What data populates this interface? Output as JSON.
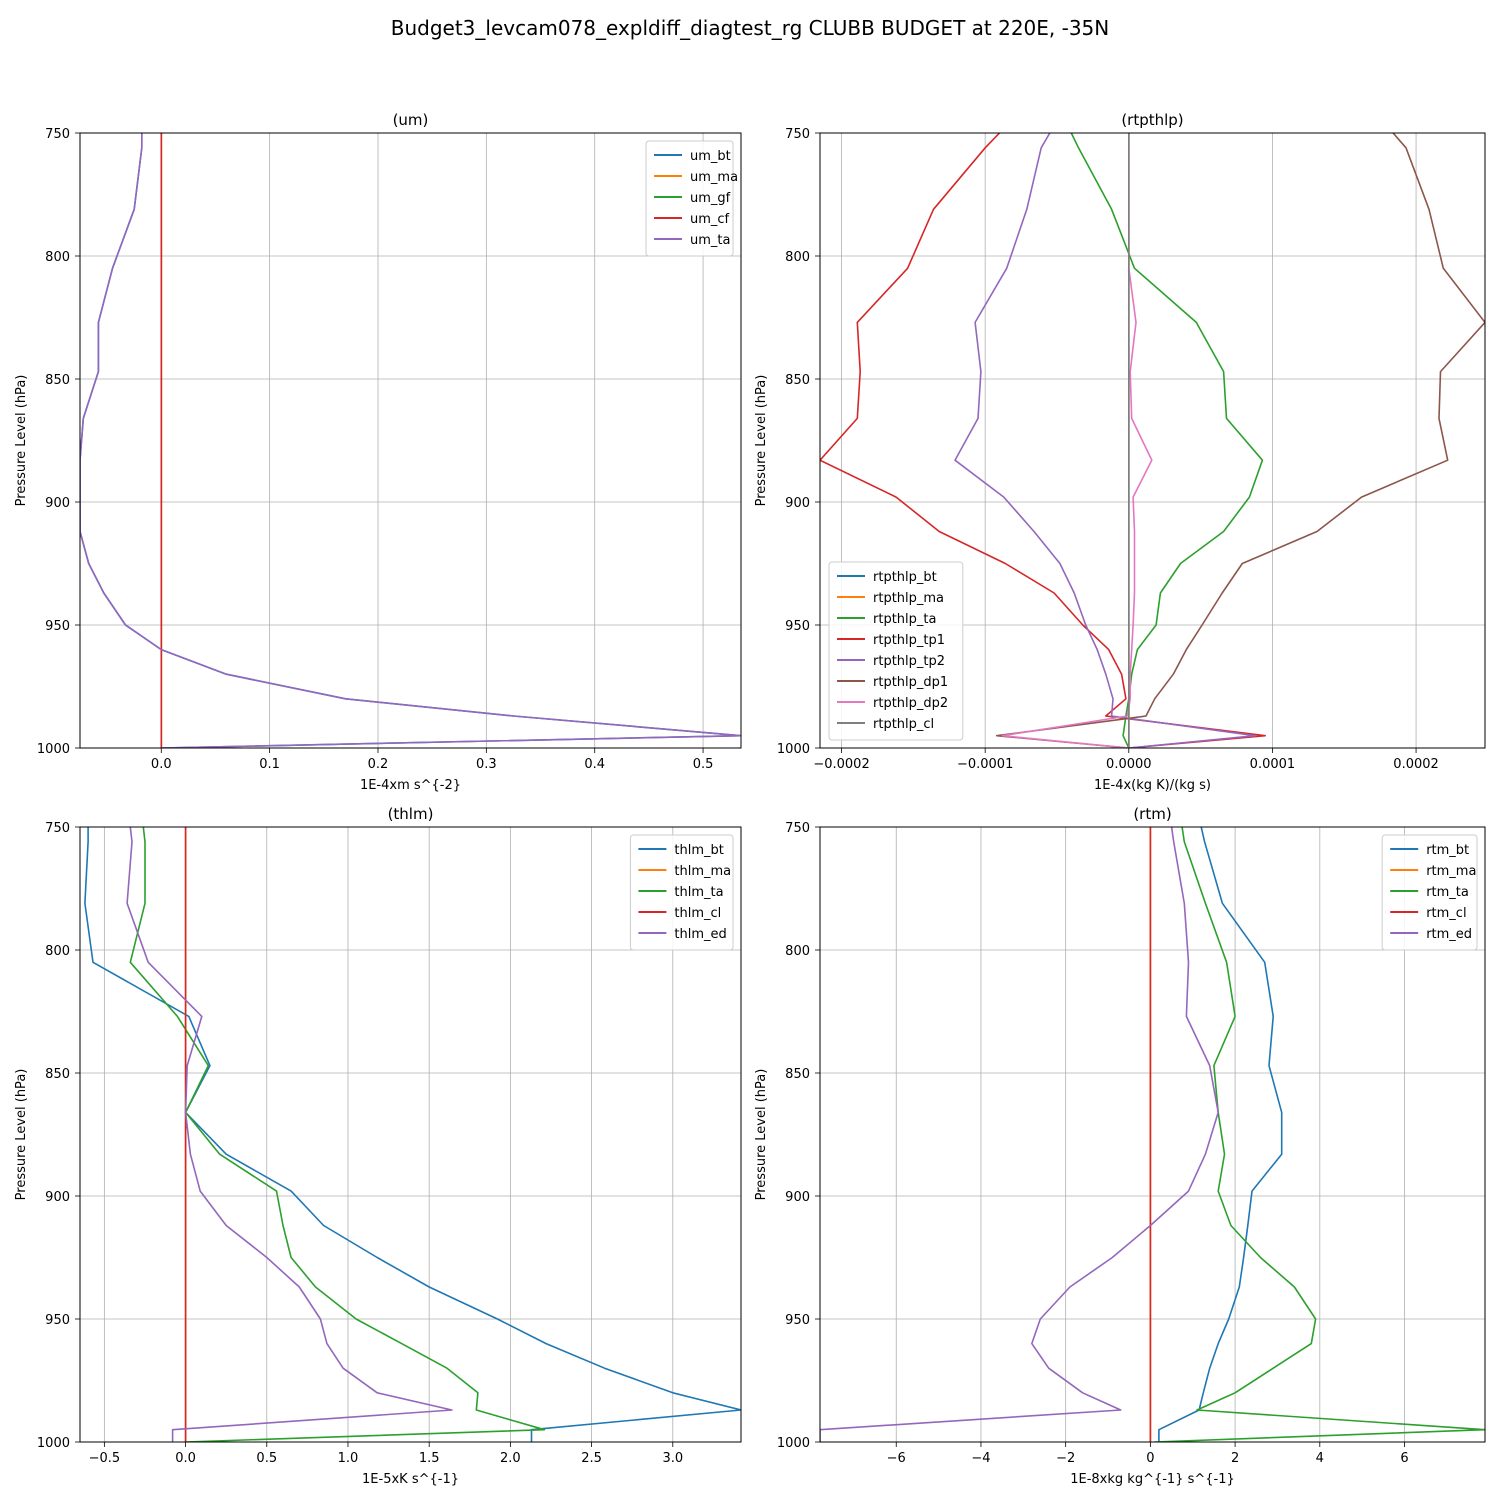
{
  "title": "Budget3_levcam078_expldiff_diagtest_rg CLUBB BUDGET at 220E, -35N",
  "colors": {
    "blue": "#1f77b4",
    "orange": "#ff7f0e",
    "green": "#2ca02c",
    "red": "#d62728",
    "purple": "#9467bd",
    "brown": "#8c564b",
    "pink": "#e377c2",
    "gray": "#7f7f7f"
  },
  "chart_data": [
    {
      "type": "line",
      "title": "(um)",
      "xlabel": "1E-4xm s^{-2}",
      "ylabel": "Pressure Level (hPa)",
      "xlim": [
        -0.075,
        0.535
      ],
      "ylim": [
        1000,
        750
      ],
      "xticks": [
        "0.0",
        "0.1",
        "0.2",
        "0.3",
        "0.4",
        "0.5"
      ],
      "xtick_values": [
        0.0,
        0.1,
        0.2,
        0.3,
        0.4,
        0.5
      ],
      "yticks": [
        "750",
        "800",
        "850",
        "900",
        "950",
        "1000"
      ],
      "ytick_values": [
        750,
        800,
        850,
        900,
        950,
        1000
      ],
      "grid": true,
      "legend_position": "top-right",
      "levels": [
        750,
        756,
        781,
        805,
        827,
        847,
        866,
        883,
        898,
        912,
        925,
        937,
        950,
        960,
        970,
        980,
        987,
        995,
        1000
      ],
      "series": [
        {
          "name": "um_bt",
          "color": "blue",
          "x": [
            -0.018,
            -0.018,
            -0.025,
            -0.045,
            -0.058,
            -0.058,
            -0.072,
            -0.075,
            -0.075,
            -0.075,
            -0.067,
            -0.053,
            -0.033,
            0.0,
            0.06,
            0.17,
            0.325,
            0.535,
            0.0
          ]
        },
        {
          "name": "um_ma",
          "color": "orange",
          "x": [
            0,
            0,
            0,
            0,
            0,
            0,
            0,
            0,
            0,
            0,
            0,
            0,
            0,
            0,
            0,
            0,
            0,
            0,
            0
          ]
        },
        {
          "name": "um_gf",
          "color": "green",
          "x": [
            0,
            0,
            0,
            0,
            0,
            0,
            0,
            0,
            0,
            0,
            0,
            0,
            0,
            0,
            0,
            0,
            0,
            0,
            0
          ]
        },
        {
          "name": "um_cf",
          "color": "red",
          "x": [
            0,
            0,
            0,
            0,
            0,
            0,
            0,
            0,
            0,
            0,
            0,
            0,
            0,
            0,
            0,
            0,
            0,
            0,
            0
          ]
        },
        {
          "name": "um_ta",
          "color": "purple",
          "x": [
            -0.018,
            -0.018,
            -0.025,
            -0.045,
            -0.058,
            -0.058,
            -0.072,
            -0.075,
            -0.075,
            -0.075,
            -0.067,
            -0.053,
            -0.033,
            0.0,
            0.06,
            0.17,
            0.325,
            0.535,
            0.0
          ]
        }
      ]
    },
    {
      "type": "line",
      "title": "(rtpthlp)",
      "xlabel": "1E-4x(kg K)/(kg s)",
      "ylabel": "Pressure Level (hPa)",
      "xlim": [
        -0.000215,
        0.000248
      ],
      "ylim": [
        1000,
        750
      ],
      "xticks": [
        "−0.0002",
        "−0.0001",
        "0.0000",
        "0.0001",
        "0.0002"
      ],
      "xtick_values": [
        -0.0002,
        -0.0001,
        0.0,
        0.0001,
        0.0002
      ],
      "yticks": [
        "750",
        "800",
        "850",
        "900",
        "950",
        "1000"
      ],
      "ytick_values": [
        750,
        800,
        850,
        900,
        950,
        1000
      ],
      "grid": true,
      "legend_position": "bottom-left",
      "levels": [
        750,
        756,
        781,
        805,
        827,
        847,
        866,
        883,
        898,
        912,
        925,
        937,
        950,
        960,
        970,
        980,
        987,
        995,
        1000
      ],
      "series": [
        {
          "name": "rtpthlp_bt",
          "color": "blue",
          "x": [
            0.0,
            0.0,
            0.0,
            0.0,
            0.0,
            0.0,
            0.0,
            0.0,
            0.0,
            0.0,
            0.0,
            0.0,
            0.0,
            0.0,
            0.0,
            0.0,
            0.0,
            0.0,
            0.0
          ]
        },
        {
          "name": "rtpthlp_ma",
          "color": "orange",
          "x": [
            0.0,
            0.0,
            0.0,
            0.0,
            0.0,
            0.0,
            0.0,
            0.0,
            0.0,
            0.0,
            0.0,
            0.0,
            0.0,
            0.0,
            0.0,
            0.0,
            0.0,
            0.0,
            0.0
          ]
        },
        {
          "name": "rtpthlp_ta",
          "color": "green",
          "x": [
            -4e-05,
            -3.5e-05,
            -1.2e-05,
            4e-06,
            4.7e-05,
            6.6e-05,
            6.8e-05,
            9.3e-05,
            8.4e-05,
            6.6e-05,
            3.6e-05,
            2.2e-05,
            1.9e-05,
            6e-06,
            2e-06,
            0.0,
            -2e-06,
            -4e-06,
            0.0
          ]
        },
        {
          "name": "rtpthlp_tp1",
          "color": "red",
          "x": [
            -9e-05,
            -0.0001,
            -0.000136,
            -0.000154,
            -0.000189,
            -0.000187,
            -0.000189,
            -0.000215,
            -0.000162,
            -0.000132,
            -8.6e-05,
            -5.2e-05,
            -3.2e-05,
            -1.4e-05,
            -5e-06,
            -2e-06,
            -1.6e-05,
            9.5e-05,
            0.0
          ]
        },
        {
          "name": "rtpthlp_tp2",
          "color": "purple",
          "x": [
            -5.5e-05,
            -6.1e-05,
            -7.1e-05,
            -8.5e-05,
            -0.000107,
            -0.000103,
            -0.000105,
            -0.000121,
            -8.7e-05,
            -6.6e-05,
            -4.8e-05,
            -3.8e-05,
            -3e-05,
            -2.2e-05,
            -1.6e-05,
            -1.1e-05,
            -1.2e-05,
            8.8e-05,
            0.0
          ]
        },
        {
          "name": "rtpthlp_dp1",
          "color": "brown",
          "x": [
            0.000184,
            0.000193,
            0.000209,
            0.000219,
            0.000248,
            0.000217,
            0.000216,
            0.000222,
            0.000162,
            0.000131,
            7.9e-05,
            6.5e-05,
            5.1e-05,
            4e-05,
            3.1e-05,
            1.8e-05,
            1.2e-05,
            -9.2e-05,
            0.0
          ]
        },
        {
          "name": "rtpthlp_dp2",
          "color": "pink",
          "x": [
            0.0,
            0.0,
            0.0,
            0.0,
            5e-06,
            1e-06,
            2e-06,
            1.6e-05,
            3e-06,
            4e-06,
            4e-06,
            4e-06,
            3e-06,
            2e-06,
            1e-06,
            1e-06,
            -1e-06,
            -8.8e-05,
            0.0
          ]
        },
        {
          "name": "rtpthlp_cl",
          "color": "gray",
          "x": [
            0.0,
            0.0,
            0.0,
            0.0,
            0.0,
            0.0,
            0.0,
            0.0,
            0.0,
            0.0,
            0.0,
            0.0,
            0.0,
            0.0,
            0.0,
            0.0,
            0.0,
            0.0,
            0.0
          ]
        }
      ]
    },
    {
      "type": "line",
      "title": "(thlm)",
      "xlabel": "1E-5xK s^{-1}",
      "ylabel": "Pressure Level (hPa)",
      "xlim": [
        -0.65,
        3.42
      ],
      "ylim": [
        1000,
        750
      ],
      "xticks": [
        "−0.5",
        "0.0",
        "0.5",
        "1.0",
        "1.5",
        "2.0",
        "2.5",
        "3.0"
      ],
      "xtick_values": [
        -0.5,
        0.0,
        0.5,
        1.0,
        1.5,
        2.0,
        2.5,
        3.0
      ],
      "yticks": [
        "750",
        "800",
        "850",
        "900",
        "950",
        "1000"
      ],
      "ytick_values": [
        750,
        800,
        850,
        900,
        950,
        1000
      ],
      "grid": true,
      "legend_position": "top-right",
      "levels": [
        750,
        756,
        781,
        805,
        827,
        847,
        866,
        883,
        898,
        912,
        925,
        937,
        950,
        960,
        970,
        980,
        987,
        995,
        1000
      ],
      "series": [
        {
          "name": "thlm_bt",
          "color": "blue",
          "x": [
            -0.6,
            -0.6,
            -0.62,
            -0.57,
            0.02,
            0.15,
            0.0,
            0.25,
            0.65,
            0.85,
            1.18,
            1.5,
            1.92,
            2.22,
            2.58,
            3.0,
            3.42,
            2.13,
            2.13
          ]
        },
        {
          "name": "thlm_ma",
          "color": "orange",
          "x": [
            0,
            0,
            0,
            0,
            0,
            0,
            0,
            0,
            0,
            0,
            0,
            0,
            0,
            0,
            0,
            0,
            0,
            0,
            0
          ]
        },
        {
          "name": "thlm_ta",
          "color": "green",
          "x": [
            -0.26,
            -0.25,
            -0.25,
            -0.34,
            -0.05,
            0.14,
            0.0,
            0.21,
            0.56,
            0.6,
            0.65,
            0.8,
            1.05,
            1.33,
            1.61,
            1.8,
            1.79,
            2.21,
            0.0
          ]
        },
        {
          "name": "thlm_cl",
          "color": "red",
          "x": [
            0,
            0,
            0,
            0,
            0,
            0,
            0,
            0,
            0,
            0,
            0,
            0,
            0,
            0,
            0,
            0,
            0,
            0,
            0
          ]
        },
        {
          "name": "thlm_ed",
          "color": "purple",
          "x": [
            -0.34,
            -0.33,
            -0.36,
            -0.23,
            0.1,
            0.01,
            0.0,
            0.03,
            0.09,
            0.25,
            0.5,
            0.7,
            0.83,
            0.87,
            0.97,
            1.18,
            1.64,
            -0.08,
            -0.08
          ]
        }
      ]
    },
    {
      "type": "line",
      "title": "(rtm)",
      "xlabel": "1E-8xkg kg^{-1} s^{-1}",
      "ylabel": "Pressure Level (hPa)",
      "xlim": [
        -7.8,
        7.9
      ],
      "ylim": [
        1000,
        750
      ],
      "xticks": [
        "−6",
        "−4",
        "−2",
        "0",
        "2",
        "4",
        "6"
      ],
      "xtick_values": [
        -6,
        -4,
        -2,
        0,
        2,
        4,
        6
      ],
      "yticks": [
        "750",
        "800",
        "850",
        "900",
        "950",
        "1000"
      ],
      "ytick_values": [
        750,
        800,
        850,
        900,
        950,
        1000
      ],
      "grid": true,
      "legend_position": "top-right",
      "levels": [
        750,
        756,
        781,
        805,
        827,
        847,
        866,
        883,
        898,
        912,
        925,
        937,
        950,
        960,
        970,
        980,
        987,
        995,
        1000
      ],
      "series": [
        {
          "name": "rtm_bt",
          "color": "blue",
          "x": [
            1.2,
            1.28,
            1.7,
            2.7,
            2.9,
            2.8,
            3.1,
            3.1,
            2.4,
            2.3,
            2.2,
            2.1,
            1.85,
            1.6,
            1.4,
            1.25,
            1.15,
            0.2,
            0.2
          ]
        },
        {
          "name": "rtm_ma",
          "color": "orange",
          "x": [
            0,
            0,
            0,
            0,
            0,
            0,
            0,
            0,
            0,
            0,
            0,
            0,
            0,
            0,
            0,
            0,
            0,
            0,
            0
          ]
        },
        {
          "name": "rtm_ta",
          "color": "green",
          "x": [
            0.75,
            0.8,
            1.3,
            1.8,
            2.0,
            1.5,
            1.6,
            1.75,
            1.6,
            1.9,
            2.6,
            3.4,
            3.9,
            3.8,
            2.9,
            2.0,
            1.1,
            7.9,
            0.1
          ]
        },
        {
          "name": "rtm_cl",
          "color": "red",
          "x": [
            0,
            0,
            0,
            0,
            0,
            0,
            0,
            0,
            0,
            0,
            0,
            0,
            0,
            0,
            0,
            0,
            0,
            0,
            0
          ]
        },
        {
          "name": "rtm_ed",
          "color": "purple",
          "x": [
            0.5,
            0.55,
            0.8,
            0.9,
            0.85,
            1.4,
            1.6,
            1.3,
            0.9,
            0.0,
            -0.9,
            -1.9,
            -2.6,
            -2.8,
            -2.4,
            -1.6,
            -0.7,
            -7.8,
            -7.8
          ]
        }
      ]
    }
  ]
}
